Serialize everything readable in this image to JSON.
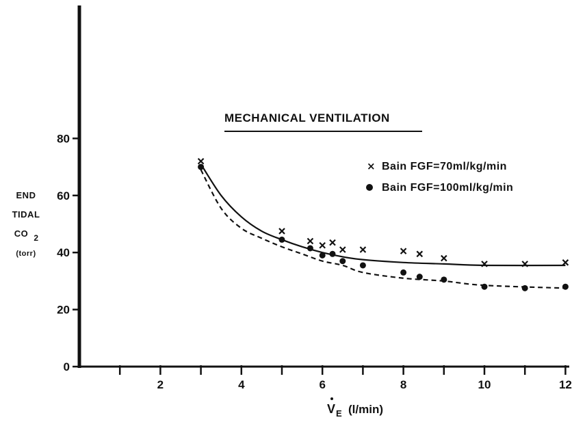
{
  "chart_data": {
    "type": "scatter",
    "title": "MECHANICAL VENTILATION",
    "ylabel_lines": [
      "END",
      "TIDAL",
      "CO",
      "(torr)"
    ],
    "ylabel_sub": "2",
    "xlabel_main": "V",
    "xlabel_sub": "E",
    "xlabel_unit": "(l/min)",
    "xlim": [
      0,
      12
    ],
    "ylim": [
      0,
      80
    ],
    "xticks": [
      2,
      4,
      6,
      8,
      10,
      12
    ],
    "yticks": [
      0,
      20,
      40,
      60,
      80
    ],
    "grid": false,
    "legend_position": "top-right",
    "series": [
      {
        "name": "Bain FGF=70ml/kg/min",
        "marker": "x",
        "fit_line": "solid",
        "x": [
          3,
          5,
          5.7,
          6,
          6.25,
          6.5,
          7,
          8,
          8.4,
          9,
          10,
          11,
          12
        ],
        "y": [
          72,
          47.5,
          44,
          42.5,
          43.5,
          41,
          41,
          40.5,
          39.5,
          38,
          36,
          36,
          36.5
        ],
        "fit_y": [
          71,
          60,
          52.5,
          47.5,
          44.5,
          42,
          40,
          38.5,
          37.5,
          36.5,
          36,
          35.5,
          35.5
        ]
      },
      {
        "name": "Bain FGF=100ml/kg/min",
        "marker": "dot",
        "fit_line": "dashed",
        "x": [
          3,
          5,
          5.7,
          6,
          6.25,
          6.5,
          7,
          8,
          8.4,
          9,
          10,
          11,
          12
        ],
        "y": [
          70,
          44.5,
          41.5,
          39,
          39.5,
          37,
          35.5,
          33,
          31.5,
          30.5,
          28,
          27.5,
          28
        ],
        "fit_y": [
          69,
          55.5,
          48.5,
          45,
          42,
          39.5,
          37,
          35.5,
          33,
          31,
          30,
          28.5,
          27.5
        ]
      }
    ],
    "fit_x": [
      3,
      3.5,
      4,
      4.5,
      5,
      5.5,
      6,
      6.5,
      7,
      8,
      9,
      10,
      12
    ],
    "colors": {
      "ink": "#111111"
    }
  }
}
